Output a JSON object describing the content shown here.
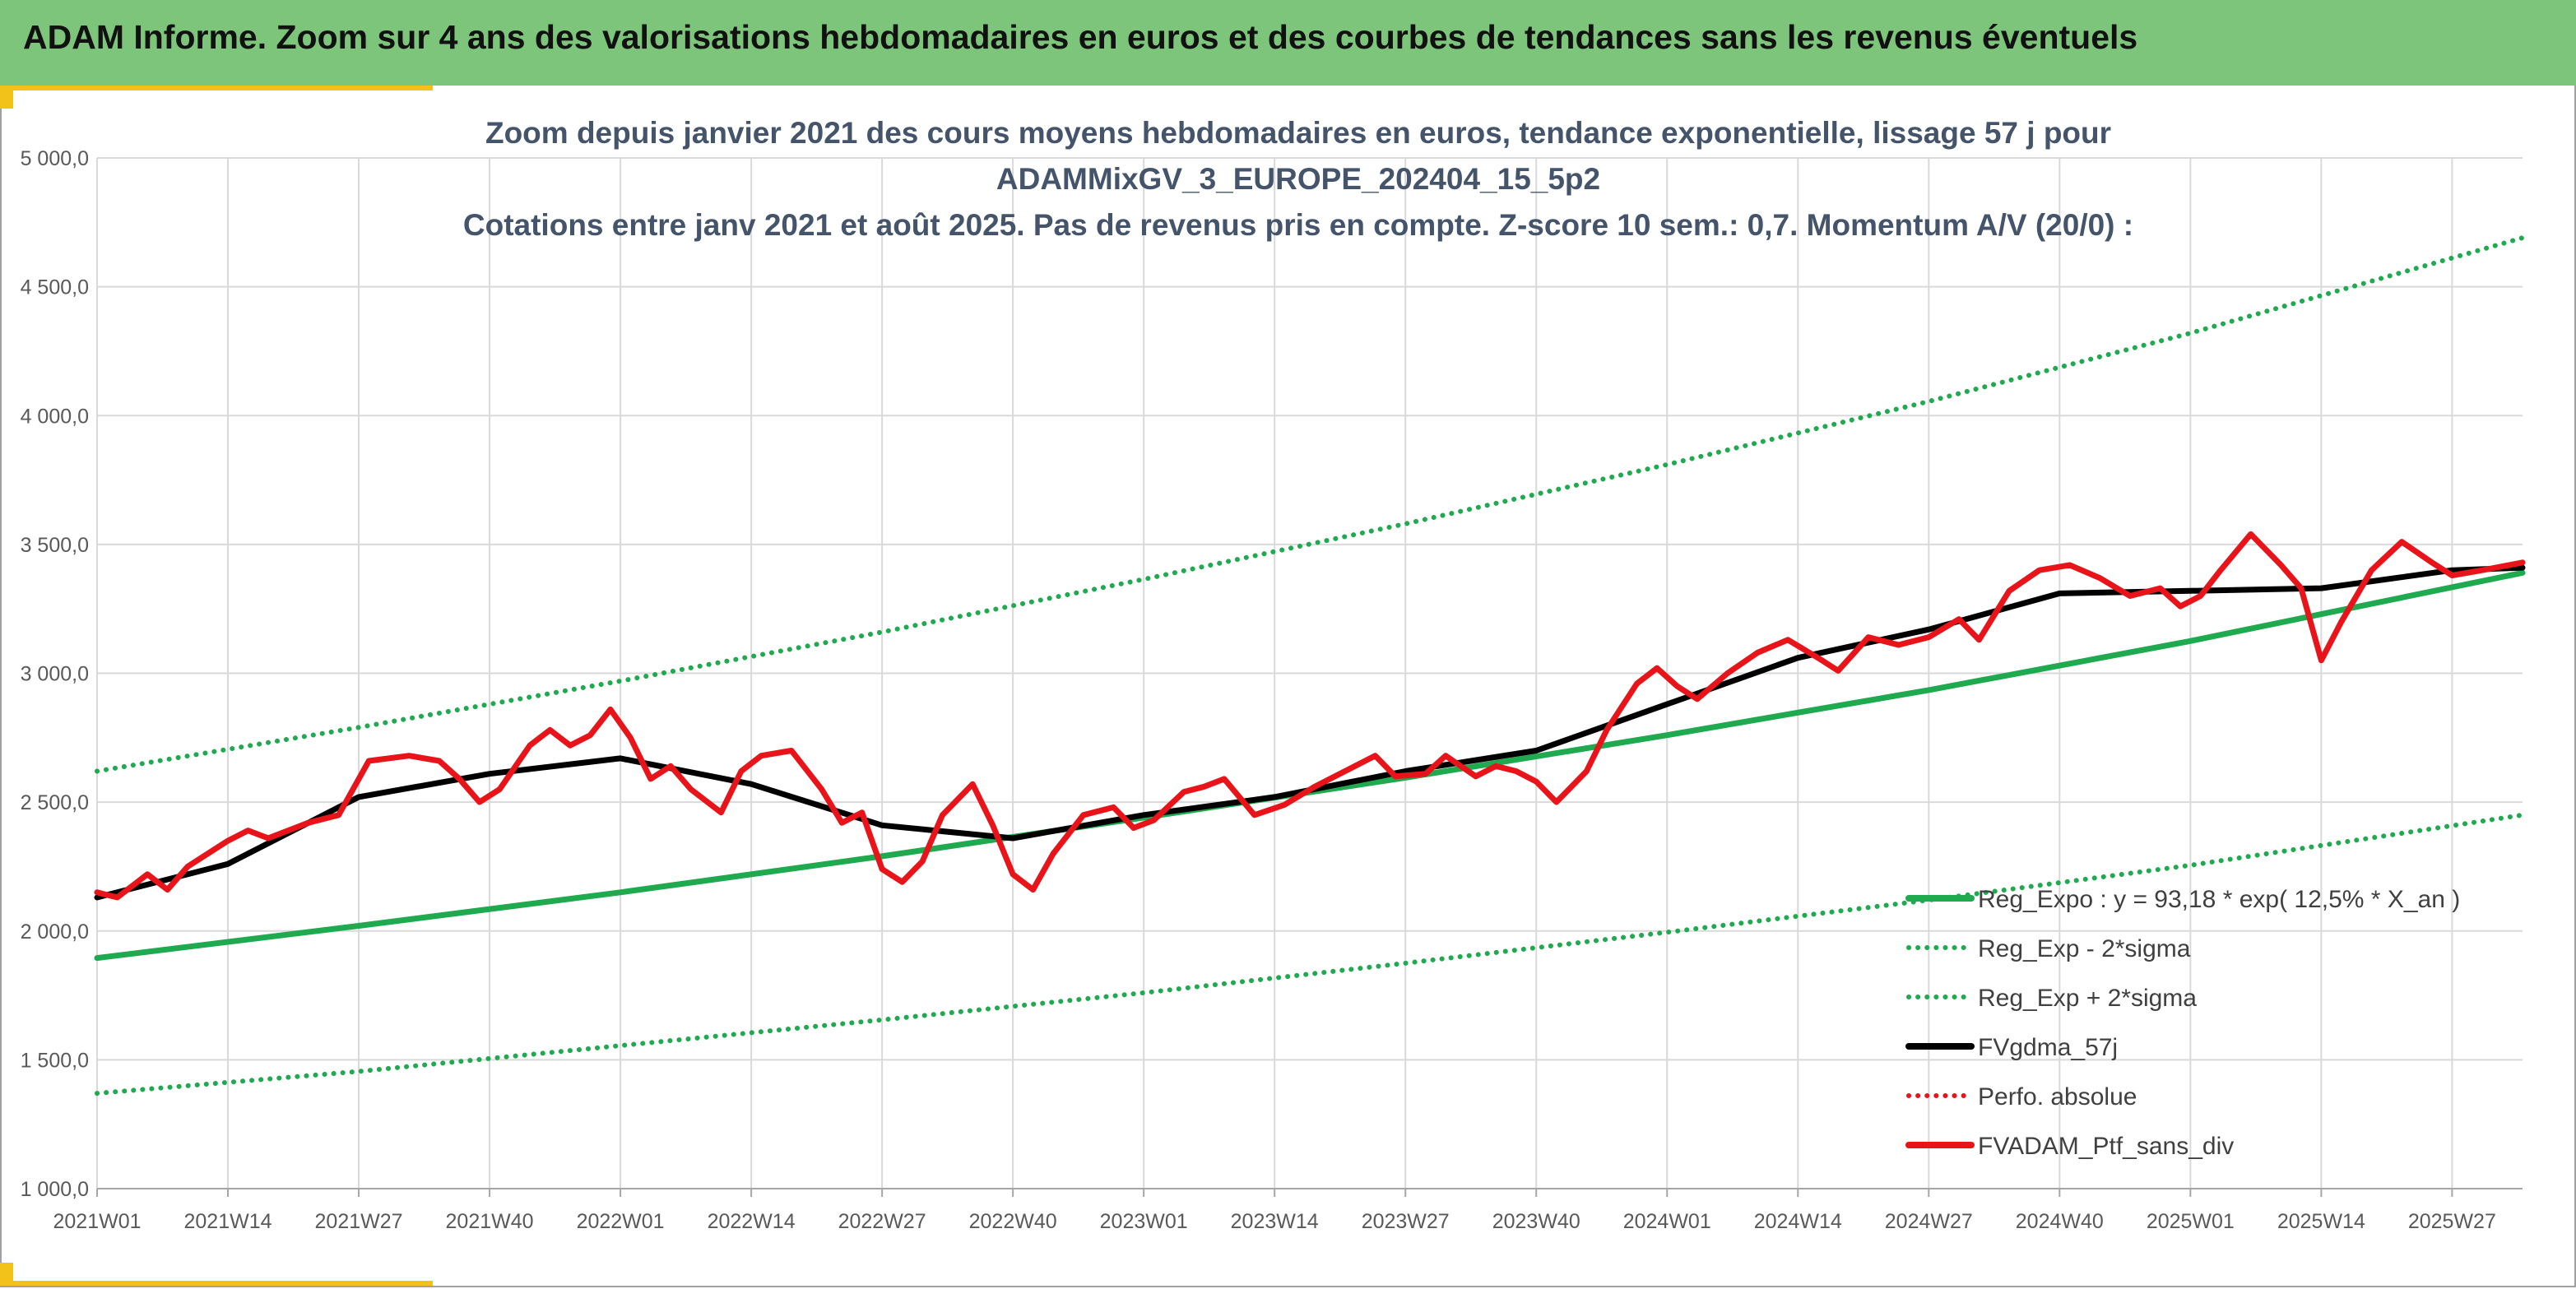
{
  "header": {
    "title": "ADAM Informe. Zoom sur 4 ans des valorisations hebdomadaires en euros et des courbes de tendances sans les revenus éventuels"
  },
  "colors": {
    "header_bg": "#7dc57a",
    "accent_corner": "#f2c21a",
    "trend_green": "#1faa4f",
    "band_green": "#1faa4f",
    "gdma_black": "#000000",
    "ptf_red": "#e8141a"
  },
  "chart_data": {
    "type": "line",
    "title": [
      "Zoom depuis janvier 2021 des cours moyens hebdomadaires en euros, tendance exponentielle, lissage 57 j pour",
      "ADAMMixGV_3_EUROPE_202404_15_5p2",
      "Cotations entre janv 2021 et août 2025. Pas de revenus pris en compte. Z-score 10 sem.: 0,7. Momentum A/V (20/0) :"
    ],
    "xlabel": "",
    "ylabel": "",
    "ylim": [
      1000,
      5000
    ],
    "yticks": [
      "1 000,0",
      "1 500,0",
      "2 000,0",
      "2 500,0",
      "3 000,0",
      "3 500,0",
      "4 000,0",
      "4 500,0",
      "5 000,0"
    ],
    "xticks": [
      "2021W01",
      "2021W14",
      "2021W27",
      "2021W40",
      "2022W01",
      "2022W14",
      "2022W27",
      "2022W40",
      "2023W01",
      "2023W14",
      "2023W27",
      "2023W40",
      "2024W01",
      "2024W14",
      "2024W27",
      "2024W40",
      "2025W01",
      "2025W14",
      "2025W27"
    ],
    "x_start": "2021W01",
    "x_end": "2025W34",
    "grid": true,
    "legend_position": "bottom-right",
    "series": [
      {
        "name": "Reg_Expo : y = 93,18 * exp( 12,5% *  X_an )",
        "style": "solid",
        "color": "#1faa4f",
        "points": [
          [
            "2021W01",
            1895
          ],
          [
            "2021W27",
            2020
          ],
          [
            "2022W01",
            2150
          ],
          [
            "2022W27",
            2290
          ],
          [
            "2023W01",
            2440
          ],
          [
            "2023W27",
            2595
          ],
          [
            "2024W01",
            2760
          ],
          [
            "2024W27",
            2935
          ],
          [
            "2025W01",
            3125
          ],
          [
            "2025W34",
            3390
          ]
        ]
      },
      {
        "name": "Reg_Exp - 2*sigma",
        "style": "dotted",
        "color": "#1faa4f",
        "points": [
          [
            "2021W01",
            1370
          ],
          [
            "2021W27",
            1455
          ],
          [
            "2022W01",
            1555
          ],
          [
            "2022W27",
            1655
          ],
          [
            "2023W01",
            1760
          ],
          [
            "2023W27",
            1875
          ],
          [
            "2024W01",
            1995
          ],
          [
            "2024W27",
            2120
          ],
          [
            "2025W01",
            2255
          ],
          [
            "2025W34",
            2450
          ]
        ]
      },
      {
        "name": "Reg_Exp + 2*sigma",
        "style": "dotted",
        "color": "#1faa4f",
        "points": [
          [
            "2021W01",
            2620
          ],
          [
            "2021W27",
            2790
          ],
          [
            "2022W01",
            2970
          ],
          [
            "2022W27",
            3160
          ],
          [
            "2023W01",
            3365
          ],
          [
            "2023W27",
            3580
          ],
          [
            "2024W01",
            3810
          ],
          [
            "2024W27",
            4055
          ],
          [
            "2025W01",
            4320
          ],
          [
            "2025W34",
            4690
          ]
        ]
      },
      {
        "name": "FVgdma_57j",
        "style": "solid",
        "color": "#000000",
        "points": [
          [
            "2021W01",
            2130
          ],
          [
            "2021W14",
            2260
          ],
          [
            "2021W27",
            2520
          ],
          [
            "2021W40",
            2610
          ],
          [
            "2022W01",
            2670
          ],
          [
            "2022W14",
            2570
          ],
          [
            "2022W27",
            2410
          ],
          [
            "2022W40",
            2360
          ],
          [
            "2023W01",
            2450
          ],
          [
            "2023W14",
            2520
          ],
          [
            "2023W27",
            2620
          ],
          [
            "2023W40",
            2700
          ],
          [
            "2024W01",
            2880
          ],
          [
            "2024W14",
            3060
          ],
          [
            "2024W27",
            3170
          ],
          [
            "2024W40",
            3310
          ],
          [
            "2025W01",
            3320
          ],
          [
            "2025W14",
            3330
          ],
          [
            "2025W27",
            3400
          ],
          [
            "2025W34",
            3410
          ]
        ]
      },
      {
        "name": "Perfo. absolue",
        "style": "dotted",
        "color": "#e8141a",
        "points": []
      },
      {
        "name": "FVADAM_Ptf_sans_div",
        "style": "solid",
        "color": "#e8141a",
        "points": [
          [
            "2021W01",
            2150
          ],
          [
            "2021W03",
            2130
          ],
          [
            "2021W06",
            2220
          ],
          [
            "2021W08",
            2160
          ],
          [
            "2021W10",
            2250
          ],
          [
            "2021W14",
            2350
          ],
          [
            "2021W16",
            2390
          ],
          [
            "2021W18",
            2360
          ],
          [
            "2021W22",
            2420
          ],
          [
            "2021W25",
            2450
          ],
          [
            "2021W28",
            2660
          ],
          [
            "2021W32",
            2680
          ],
          [
            "2021W35",
            2660
          ],
          [
            "2021W37",
            2590
          ],
          [
            "2021W39",
            2500
          ],
          [
            "2021W41",
            2550
          ],
          [
            "2021W44",
            2720
          ],
          [
            "2021W46",
            2780
          ],
          [
            "2021W48",
            2720
          ],
          [
            "2021W50",
            2760
          ],
          [
            "2021W52",
            2860
          ],
          [
            "2022W02",
            2750
          ],
          [
            "2022W04",
            2590
          ],
          [
            "2022W06",
            2640
          ],
          [
            "2022W08",
            2550
          ],
          [
            "2022W11",
            2460
          ],
          [
            "2022W13",
            2620
          ],
          [
            "2022W15",
            2680
          ],
          [
            "2022W18",
            2700
          ],
          [
            "2022W21",
            2550
          ],
          [
            "2022W23",
            2420
          ],
          [
            "2022W25",
            2460
          ],
          [
            "2022W27",
            2240
          ],
          [
            "2022W29",
            2190
          ],
          [
            "2022W31",
            2270
          ],
          [
            "2022W33",
            2450
          ],
          [
            "2022W36",
            2570
          ],
          [
            "2022W38",
            2410
          ],
          [
            "2022W40",
            2220
          ],
          [
            "2022W42",
            2160
          ],
          [
            "2022W44",
            2300
          ],
          [
            "2022W47",
            2450
          ],
          [
            "2022W50",
            2480
          ],
          [
            "2022W52",
            2400
          ],
          [
            "2023W02",
            2430
          ],
          [
            "2023W05",
            2540
          ],
          [
            "2023W07",
            2560
          ],
          [
            "2023W09",
            2590
          ],
          [
            "2023W12",
            2450
          ],
          [
            "2023W15",
            2490
          ],
          [
            "2023W18",
            2560
          ],
          [
            "2023W21",
            2620
          ],
          [
            "2023W24",
            2680
          ],
          [
            "2023W26",
            2600
          ],
          [
            "2023W29",
            2610
          ],
          [
            "2023W31",
            2680
          ],
          [
            "2023W34",
            2600
          ],
          [
            "2023W36",
            2640
          ],
          [
            "2023W38",
            2620
          ],
          [
            "2023W40",
            2580
          ],
          [
            "2023W42",
            2500
          ],
          [
            "2023W45",
            2620
          ],
          [
            "2023W47",
            2780
          ],
          [
            "2023W50",
            2960
          ],
          [
            "2023W52",
            3020
          ],
          [
            "2024W02",
            2950
          ],
          [
            "2024W04",
            2900
          ],
          [
            "2024W07",
            3000
          ],
          [
            "2024W10",
            3080
          ],
          [
            "2024W13",
            3130
          ],
          [
            "2024W16",
            3060
          ],
          [
            "2024W18",
            3010
          ],
          [
            "2024W21",
            3140
          ],
          [
            "2024W24",
            3110
          ],
          [
            "2024W27",
            3140
          ],
          [
            "2024W30",
            3210
          ],
          [
            "2024W32",
            3130
          ],
          [
            "2024W35",
            3320
          ],
          [
            "2024W38",
            3400
          ],
          [
            "2024W41",
            3420
          ],
          [
            "2024W44",
            3370
          ],
          [
            "2024W47",
            3300
          ],
          [
            "2024W50",
            3330
          ],
          [
            "2024W52",
            3260
          ],
          [
            "2025W02",
            3300
          ],
          [
            "2025W04",
            3400
          ],
          [
            "2025W07",
            3540
          ],
          [
            "2025W10",
            3420
          ],
          [
            "2025W12",
            3330
          ],
          [
            "2025W14",
            3050
          ],
          [
            "2025W16",
            3200
          ],
          [
            "2025W19",
            3400
          ],
          [
            "2025W22",
            3510
          ],
          [
            "2025W25",
            3430
          ],
          [
            "2025W27",
            3380
          ],
          [
            "2025W30",
            3400
          ],
          [
            "2025W34",
            3430
          ]
        ]
      }
    ]
  }
}
